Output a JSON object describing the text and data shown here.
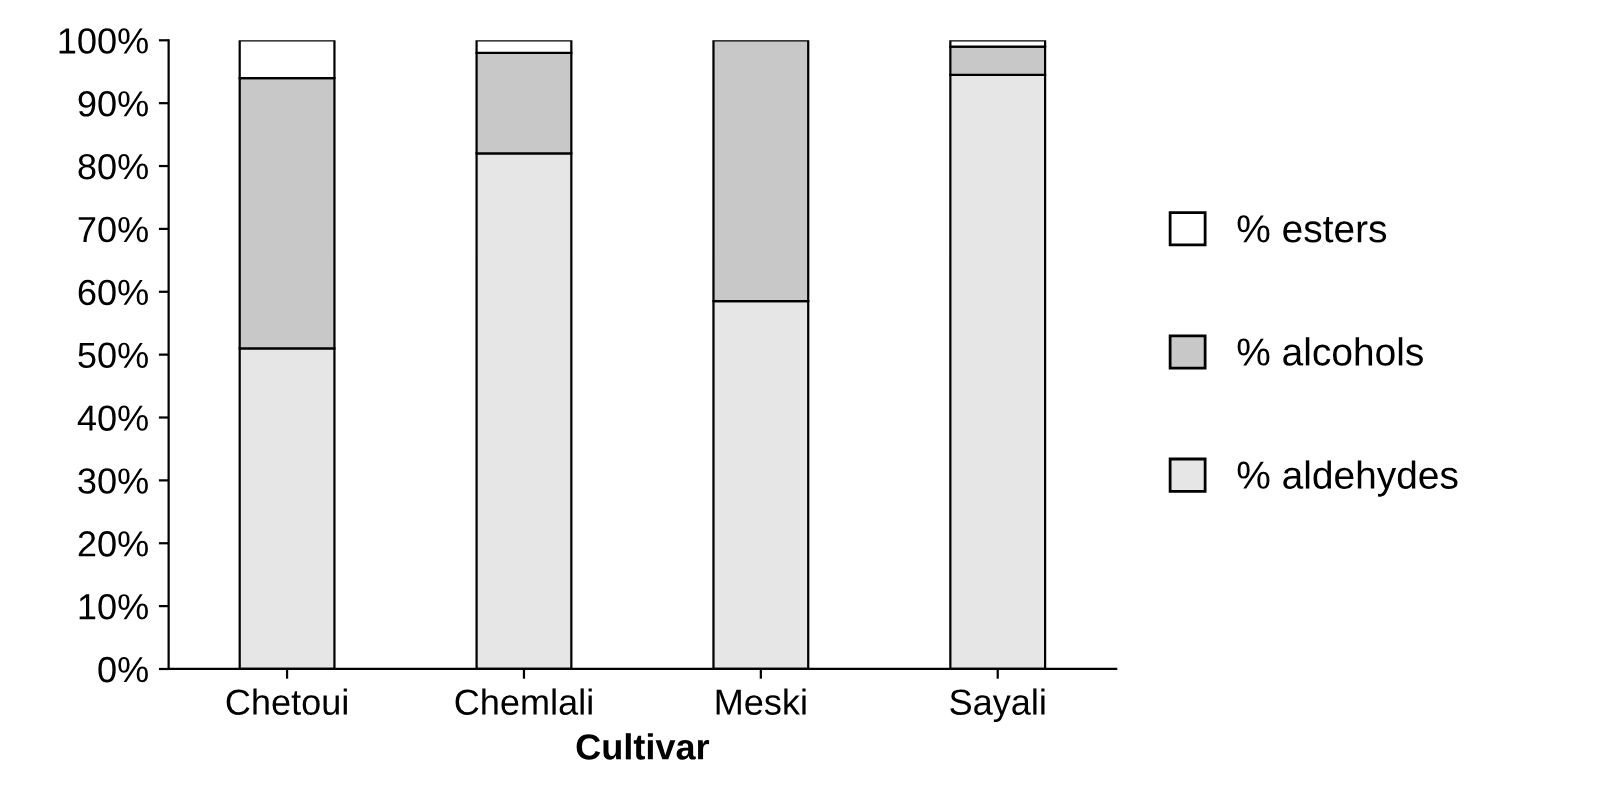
{
  "chart_data": {
    "type": "bar",
    "stacked": true,
    "xlabel": "Cultivar",
    "categories": [
      "Chetoui",
      "Chemlali",
      "Meski",
      "Sayali"
    ],
    "series": [
      {
        "name": "% aldehydes",
        "color": "#e6e6e6",
        "values": [
          51,
          82,
          58.5,
          94.5
        ]
      },
      {
        "name": "% alcohols",
        "color": "#c8c8c8",
        "values": [
          43,
          16,
          41.5,
          4.5
        ]
      },
      {
        "name": "% esters",
        "color": "#ffffff",
        "values": [
          6,
          2,
          null,
          1
        ]
      }
    ],
    "ylim": [
      0,
      100
    ],
    "yticks": [
      {
        "value": 0,
        "label": "0%"
      },
      {
        "value": 10,
        "label": "10%"
      },
      {
        "value": 20,
        "label": "20%"
      },
      {
        "value": 30,
        "label": "30%"
      },
      {
        "value": 40,
        "label": "40%"
      },
      {
        "value": 50,
        "label": "50%"
      },
      {
        "value": 60,
        "label": "60%"
      },
      {
        "value": 70,
        "label": "70%"
      },
      {
        "value": 80,
        "label": "80%"
      },
      {
        "value": 90,
        "label": "90%"
      },
      {
        "value": 100,
        "label": "100%"
      }
    ],
    "grid": false,
    "legend": "right"
  }
}
